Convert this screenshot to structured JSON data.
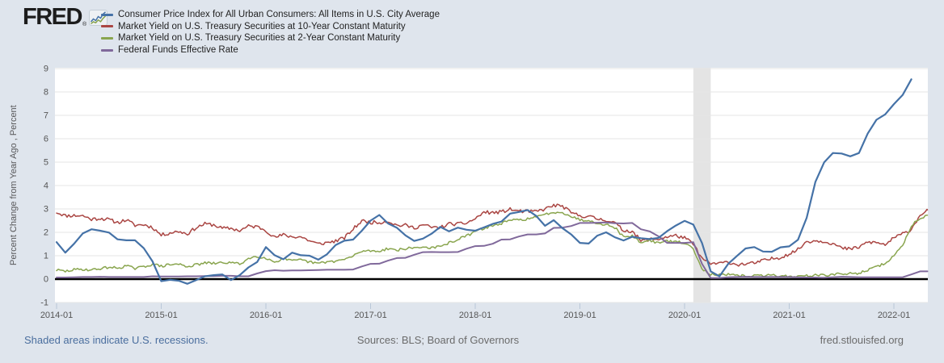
{
  "header": {
    "logo": {
      "text": "FRED",
      "registered_mark": "®"
    },
    "legend": {
      "items": [
        {
          "label": "Consumer Price Index for All Urban Consumers: All Items in U.S. City Average",
          "color": "#4572a7"
        },
        {
          "label": "Market Yield on U.S. Treasury Securities at 10-Year Constant Maturity",
          "color": "#aa4643"
        },
        {
          "label": "Market Yield on U.S. Treasury Securities at 2-Year Constant Maturity",
          "color": "#89a54e"
        },
        {
          "label": "Federal Funds Effective Rate",
          "color": "#80699b"
        }
      ]
    }
  },
  "footer": {
    "recession_note": "Shaded areas indicate U.S. recessions.",
    "sources": "Sources: BLS; Board of Governors",
    "site": "fred.stlouisfed.org"
  },
  "chart_data": {
    "type": "line",
    "title": "",
    "xlabel": "",
    "ylabel": "Percent Change from Year Ago , Percent",
    "ylim": [
      -1,
      9
    ],
    "y_ticks": [
      -1,
      0,
      1,
      2,
      3,
      4,
      5,
      6,
      7,
      8,
      9
    ],
    "x_tick_labels": [
      "2014-01",
      "2015-01",
      "2016-01",
      "2017-01",
      "2018-01",
      "2019-01",
      "2020-01",
      "2021-01",
      "2022-01"
    ],
    "x_start": "2014-01",
    "x_end": "2022-05",
    "x_unit": "month",
    "grid": true,
    "grid_color": "#e6e6e6",
    "plot_background": "#ffffff",
    "zero_line_color": "#000000",
    "legend_position": "top-left",
    "recession_band": {
      "from": "2020-02",
      "to": "2020-04",
      "start_month_index": 73,
      "end_month_index": 75,
      "color": "#e4e4e4"
    },
    "series": [
      {
        "name": "Consumer Price Index for All Urban Consumers: All Items in U.S. City Average",
        "color": "#4572a7",
        "frequency": "monthly",
        "start": "2014-01",
        "values": [
          1.58,
          1.13,
          1.51,
          1.95,
          2.13,
          2.07,
          1.99,
          1.7,
          1.66,
          1.66,
          1.32,
          0.76,
          -0.09,
          -0.03,
          -0.07,
          -0.2,
          -0.04,
          0.12,
          0.17,
          0.2,
          -0.04,
          0.17,
          0.5,
          0.73,
          1.37,
          1.02,
          0.85,
          1.13,
          1.02,
          1.0,
          0.83,
          1.06,
          1.46,
          1.64,
          1.69,
          2.07,
          2.5,
          2.74,
          2.38,
          2.2,
          1.87,
          1.63,
          1.73,
          1.94,
          2.23,
          2.04,
          2.2,
          2.11,
          2.07,
          2.21,
          2.36,
          2.46,
          2.8,
          2.87,
          2.95,
          2.7,
          2.28,
          2.52,
          2.18,
          1.91,
          1.55,
          1.52,
          1.86,
          2.0,
          1.79,
          1.65,
          1.81,
          1.75,
          1.71,
          1.76,
          2.05,
          2.29,
          2.49,
          2.33,
          1.54,
          0.33,
          0.12,
          0.65,
          0.99,
          1.31,
          1.37,
          1.18,
          1.17,
          1.36,
          1.4,
          1.68,
          2.62,
          4.16,
          4.99,
          5.39,
          5.37,
          5.25,
          5.39,
          6.22,
          6.81,
          7.04,
          7.48,
          7.87,
          8.54
        ]
      },
      {
        "name": "Market Yield on U.S. Treasury Securities at 10-Year Constant Maturity",
        "color": "#aa4643",
        "frequency": "daily (monthly averages shown)",
        "start": "2014-01",
        "values": [
          2.86,
          2.71,
          2.72,
          2.71,
          2.56,
          2.6,
          2.54,
          2.42,
          2.53,
          2.3,
          2.33,
          2.21,
          1.88,
          1.98,
          2.04,
          1.94,
          2.2,
          2.36,
          2.32,
          2.17,
          2.17,
          2.07,
          2.26,
          2.24,
          2.09,
          1.78,
          1.89,
          1.81,
          1.81,
          1.64,
          1.5,
          1.56,
          1.63,
          1.76,
          2.14,
          2.49,
          2.43,
          2.42,
          2.48,
          2.3,
          2.3,
          2.19,
          2.32,
          2.21,
          2.2,
          2.36,
          2.35,
          2.4,
          2.58,
          2.86,
          2.84,
          2.87,
          2.98,
          2.91,
          2.89,
          2.89,
          3.0,
          3.15,
          3.12,
          2.83,
          2.71,
          2.68,
          2.57,
          2.53,
          2.4,
          2.07,
          2.06,
          1.63,
          1.7,
          1.71,
          1.81,
          1.86,
          1.76,
          1.5,
          0.87,
          0.66,
          0.67,
          0.73,
          0.62,
          0.65,
          0.68,
          0.79,
          0.87,
          0.93,
          1.08,
          1.26,
          1.61,
          1.64,
          1.62,
          1.52,
          1.32,
          1.28,
          1.37,
          1.58,
          1.56,
          1.47,
          1.76,
          1.93,
          2.13,
          2.75,
          2.96
        ]
      },
      {
        "name": "Market Yield on U.S. Treasury Securities at 2-Year Constant Maturity",
        "color": "#89a54e",
        "frequency": "daily (monthly averages shown)",
        "start": "2014-01",
        "values": [
          0.39,
          0.33,
          0.4,
          0.42,
          0.39,
          0.45,
          0.51,
          0.47,
          0.57,
          0.45,
          0.53,
          0.64,
          0.55,
          0.62,
          0.64,
          0.54,
          0.61,
          0.69,
          0.67,
          0.7,
          0.71,
          0.64,
          0.88,
          0.98,
          0.9,
          0.73,
          0.88,
          0.77,
          0.82,
          0.73,
          0.67,
          0.74,
          0.77,
          0.84,
          0.98,
          1.2,
          1.21,
          1.2,
          1.31,
          1.24,
          1.3,
          1.34,
          1.37,
          1.34,
          1.38,
          1.55,
          1.7,
          1.84,
          2.03,
          2.18,
          2.28,
          2.38,
          2.51,
          2.53,
          2.58,
          2.64,
          2.77,
          2.86,
          2.86,
          2.68,
          2.54,
          2.5,
          2.41,
          2.33,
          2.21,
          1.81,
          1.84,
          1.57,
          1.65,
          1.55,
          1.61,
          1.61,
          1.52,
          1.33,
          0.43,
          0.22,
          0.17,
          0.19,
          0.14,
          0.14,
          0.14,
          0.15,
          0.17,
          0.14,
          0.12,
          0.11,
          0.15,
          0.16,
          0.16,
          0.2,
          0.22,
          0.23,
          0.26,
          0.39,
          0.52,
          0.68,
          0.99,
          1.44,
          2.28,
          2.62,
          2.73
        ]
      },
      {
        "name": "Federal Funds Effective Rate",
        "color": "#80699b",
        "frequency": "monthly",
        "start": "2014-01",
        "values": [
          0.07,
          0.07,
          0.08,
          0.09,
          0.09,
          0.1,
          0.09,
          0.09,
          0.09,
          0.09,
          0.09,
          0.12,
          0.11,
          0.11,
          0.11,
          0.12,
          0.12,
          0.13,
          0.13,
          0.14,
          0.14,
          0.12,
          0.12,
          0.24,
          0.34,
          0.38,
          0.36,
          0.37,
          0.37,
          0.38,
          0.39,
          0.4,
          0.4,
          0.4,
          0.41,
          0.54,
          0.65,
          0.66,
          0.79,
          0.9,
          0.91,
          1.04,
          1.15,
          1.16,
          1.15,
          1.15,
          1.16,
          1.3,
          1.41,
          1.42,
          1.51,
          1.69,
          1.7,
          1.82,
          1.91,
          1.91,
          1.95,
          2.19,
          2.2,
          2.27,
          2.4,
          2.4,
          2.41,
          2.42,
          2.39,
          2.38,
          2.4,
          2.13,
          2.04,
          1.83,
          1.55,
          1.55,
          1.55,
          1.58,
          0.65,
          0.05,
          0.05,
          0.08,
          0.09,
          0.1,
          0.09,
          0.09,
          0.09,
          0.09,
          0.09,
          0.08,
          0.07,
          0.07,
          0.06,
          0.08,
          0.1,
          0.09,
          0.08,
          0.08,
          0.08,
          0.08,
          0.08,
          0.08,
          0.2,
          0.33,
          0.33
        ]
      }
    ]
  }
}
